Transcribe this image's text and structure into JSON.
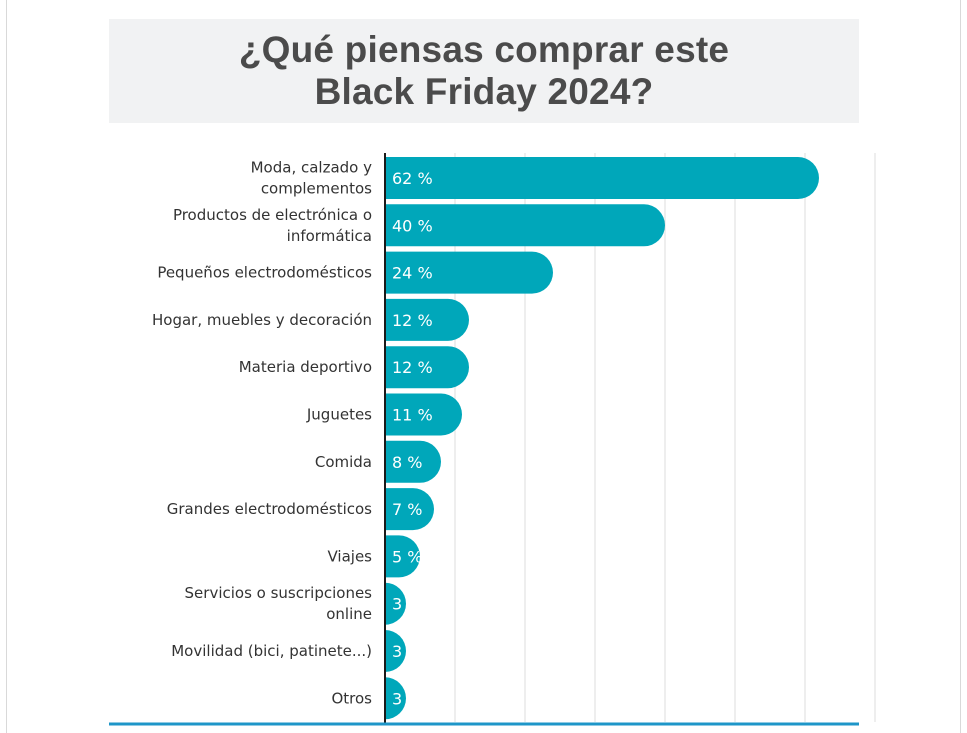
{
  "title_line1": "¿Qué piensas comprar este",
  "title_line2": "Black Friday 2024?",
  "chart_data": {
    "type": "bar",
    "orientation": "horizontal",
    "title": "¿Qué piensas comprar este Black Friday 2024?",
    "categories": [
      [
        "Moda, calzado y",
        "complementos"
      ],
      [
        "Productos de electrónica o",
        "informática"
      ],
      [
        "Pequeños electrodomésticos"
      ],
      [
        "Hogar, muebles y decoración"
      ],
      [
        "Materia deportivo"
      ],
      [
        "Juguetes"
      ],
      [
        "Comida"
      ],
      [
        "Grandes electrodomésticos"
      ],
      [
        "Viajes"
      ],
      [
        "Servicios o suscripciones",
        "online"
      ],
      [
        "Movilidad (bici, patinete...)"
      ],
      [
        "Otros"
      ]
    ],
    "values": [
      62,
      40,
      24,
      12,
      12,
      11,
      8,
      7,
      5,
      3,
      3,
      3
    ],
    "value_suffix": " %",
    "xlim": [
      0,
      70
    ],
    "grid": true,
    "bar_color": "#00a7ba",
    "grid_color": "#dddddd",
    "axis_color": "#1a1a1a",
    "baseline_color": "#1e96c8"
  }
}
